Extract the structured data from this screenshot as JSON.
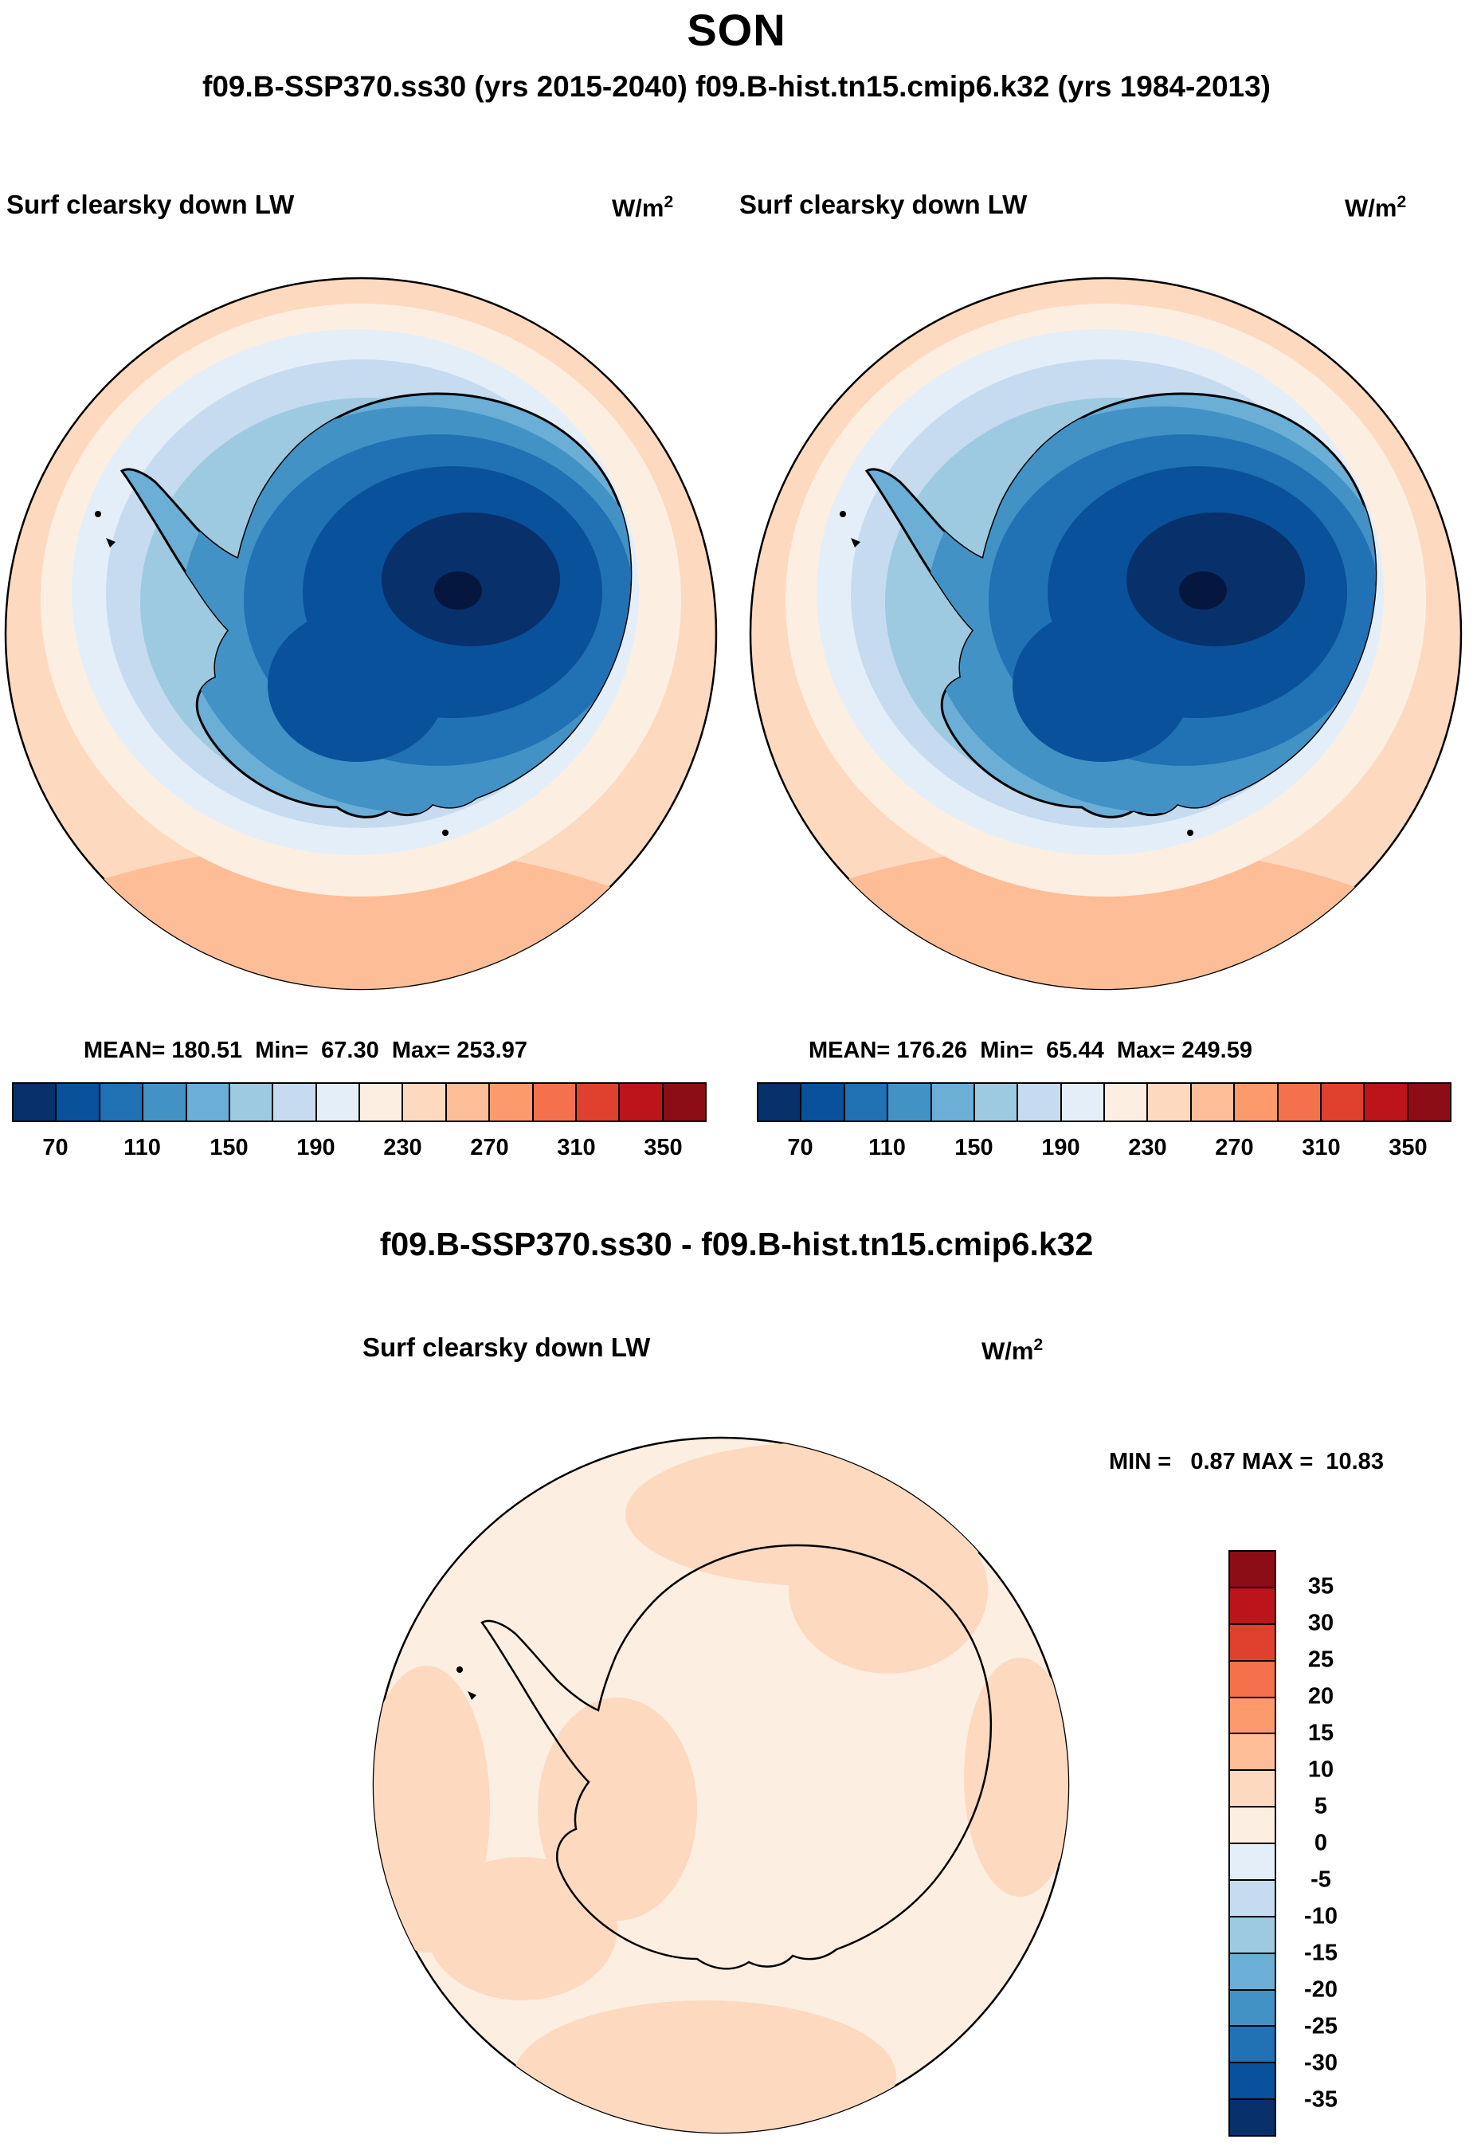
{
  "header": {
    "title": "SON",
    "subtitle": "f09.B-SSP370.ss30 (yrs 2015-2040)  f09.B-hist.tn15.cmip6.k32 (yrs 1984-2013)"
  },
  "diff_header": "f09.B-SSP370.ss30 - f09.B-hist.tn15.cmip6.k32",
  "units": {
    "base": "W/m",
    "exp": "2"
  },
  "palette_blue_to_red": [
    "#08306B",
    "#0A519C",
    "#2171B5",
    "#4292C6",
    "#6BAED6",
    "#9ECAE1",
    "#C6DBEF",
    "#E3EEF9",
    "#FDEEE2",
    "#FDD9C0",
    "#FCBD97",
    "#FC9A6B",
    "#F4714B",
    "#E0402E",
    "#BC141A",
    "#8C0D16"
  ],
  "chart_data": [
    {
      "type": "heatmap",
      "panel": "top-left",
      "title": "Surf clearsky down LW",
      "run": "f09.B-SSP370.ss30",
      "years": "2015-2040",
      "units": "W/m^2",
      "projection": "south polar stereographic (Antarctica)",
      "mean": 180.51,
      "min": 67.3,
      "max": 253.97,
      "stats_text": "MEAN= 180.51  Min=  67.30  Max= 253.97",
      "colorbar": {
        "orientation": "horizontal",
        "domain": [
          50,
          370
        ],
        "ticks": [
          70,
          110,
          150,
          190,
          230,
          270,
          310,
          350
        ],
        "colors": [
          "#08306B",
          "#0A519C",
          "#2171B5",
          "#4292C6",
          "#6BAED6",
          "#9ECAE1",
          "#C6DBEF",
          "#E3EEF9",
          "#FDEEE2",
          "#FDD9C0",
          "#FCBD97",
          "#FC9A6B",
          "#F4714B",
          "#E0402E",
          "#BC141A",
          "#8C0D16"
        ]
      }
    },
    {
      "type": "heatmap",
      "panel": "top-right",
      "title": "Surf clearsky down LW",
      "run": "f09.B-hist.tn15.cmip6.k32",
      "years": "1984-2013",
      "units": "W/m^2",
      "projection": "south polar stereographic (Antarctica)",
      "mean": 176.26,
      "min": 65.44,
      "max": 249.59,
      "stats_text": "MEAN= 176.26  Min=  65.44  Max= 249.59",
      "colorbar": {
        "orientation": "horizontal",
        "domain": [
          50,
          370
        ],
        "ticks": [
          70,
          110,
          150,
          190,
          230,
          270,
          310,
          350
        ],
        "colors": [
          "#08306B",
          "#0A519C",
          "#2171B5",
          "#4292C6",
          "#6BAED6",
          "#9ECAE1",
          "#C6DBEF",
          "#E3EEF9",
          "#FDEEE2",
          "#FDD9C0",
          "#FCBD97",
          "#FC9A6B",
          "#F4714B",
          "#E0402E",
          "#BC141A",
          "#8C0D16"
        ]
      }
    },
    {
      "type": "heatmap",
      "panel": "bottom-difference",
      "title": "Surf clearsky down LW",
      "run": "f09.B-SSP370.ss30 - f09.B-hist.tn15.cmip6.k32",
      "units": "W/m^2",
      "projection": "south polar stereographic (Antarctica)",
      "min": 0.87,
      "max": 10.83,
      "minmax_text": "MIN =   0.87 MAX =  10.83",
      "colorbar": {
        "orientation": "vertical",
        "domain": [
          -40,
          40
        ],
        "ticks": [
          35,
          30,
          25,
          20,
          15,
          10,
          5,
          0,
          -5,
          -10,
          -15,
          -20,
          -25,
          -30,
          -35
        ],
        "colors": [
          "#8C0D16",
          "#BC141A",
          "#E0402E",
          "#F4714B",
          "#FC9A6B",
          "#FCBD97",
          "#FDD9C0",
          "#FDEEE2",
          "#E3EEF9",
          "#C6DBEF",
          "#9ECAE1",
          "#6BAED6",
          "#4292C6",
          "#2171B5",
          "#0A519C",
          "#08306B"
        ]
      }
    }
  ]
}
